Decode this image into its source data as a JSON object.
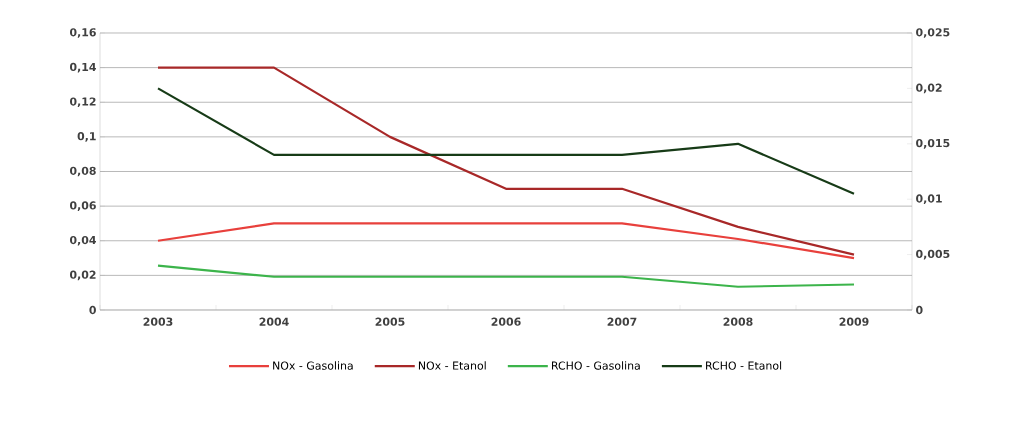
{
  "chart_data": {
    "type": "line",
    "categories": [
      "2003",
      "2004",
      "2005",
      "2006",
      "2007",
      "2008",
      "2009"
    ],
    "series": [
      {
        "name": "NOx - Gasolina",
        "color": "#e8403c",
        "values": [
          0.04,
          0.05,
          0.05,
          0.05,
          0.05,
          0.041,
          0.03
        ]
      },
      {
        "name": "NOx - Etanol",
        "color": "#a82828",
        "values": [
          0.14,
          0.14,
          0.1,
          0.07,
          0.07,
          0.048,
          0.032
        ]
      },
      {
        "name": "RCHO - Gasolina",
        "color": "#3cb44b",
        "values": [
          0.004,
          0.003,
          0.003,
          0.003,
          0.003,
          0.0021,
          0.0023
        ],
        "axis": "y2"
      },
      {
        "name": "RCHO - Etanol",
        "color": "#173b17",
        "values": [
          0.02,
          0.014,
          0.014,
          0.014,
          0.014,
          0.015,
          0.0105
        ],
        "axis": "y2"
      }
    ],
    "ylim": [
      0,
      0.16
    ],
    "yticks": [
      {
        "value": 0,
        "label": "0"
      },
      {
        "value": 0.02,
        "label": "0,02"
      },
      {
        "value": 0.04,
        "label": "0,04"
      },
      {
        "value": 0.06,
        "label": "0,06"
      },
      {
        "value": 0.08,
        "label": "0,08"
      },
      {
        "value": 0.1,
        "label": "0,1"
      },
      {
        "value": 0.12,
        "label": "0,12"
      },
      {
        "value": 0.14,
        "label": "0,14"
      },
      {
        "value": 0.16,
        "label": "0,16"
      }
    ],
    "y2lim": [
      0,
      0.025
    ],
    "y2ticks": [
      {
        "value": 0,
        "label": "0"
      },
      {
        "value": 0.005,
        "label": "0,005"
      },
      {
        "value": 0.01,
        "label": "0,01"
      },
      {
        "value": 0.015,
        "label": "0,015"
      },
      {
        "value": 0.02,
        "label": "0,02"
      },
      {
        "value": 0.025,
        "label": "0,025"
      }
    ],
    "grid": "y",
    "legend": "bottom"
  }
}
